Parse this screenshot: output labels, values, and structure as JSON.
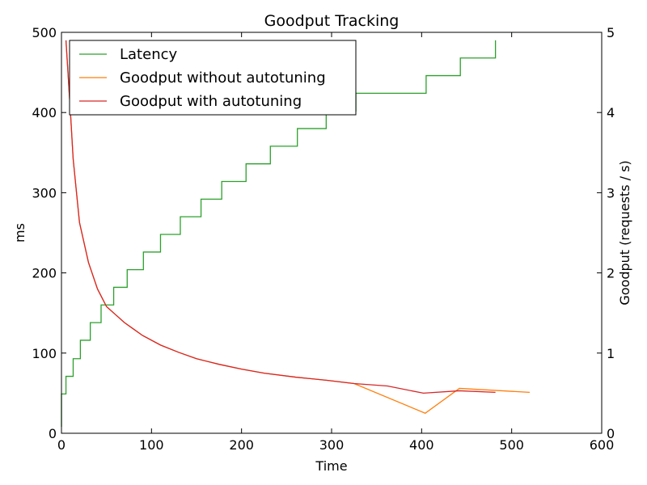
{
  "chart_data": {
    "type": "line",
    "title": "Goodput Tracking",
    "xlabel": "Time",
    "ylabel_left": "ms",
    "ylabel_right": "Goodput (requests / s)",
    "xlim": [
      0,
      600
    ],
    "ylim_left": [
      0,
      500
    ],
    "ylim_right": [
      0,
      5
    ],
    "x_ticks": [
      0,
      100,
      200,
      300,
      400,
      500,
      600
    ],
    "y_ticks_left": [
      0,
      100,
      200,
      300,
      400,
      500
    ],
    "y_ticks_right": [
      0,
      1,
      2,
      3,
      4,
      5
    ],
    "grid": false,
    "legend_position": "upper-left",
    "series": [
      {
        "name": "Latency",
        "axis": "left",
        "color": "#2ca02c",
        "step": true,
        "points": [
          [
            0,
            8
          ],
          [
            0,
            49
          ],
          [
            5,
            49
          ],
          [
            5,
            71
          ],
          [
            13,
            71
          ],
          [
            13,
            93
          ],
          [
            21,
            93
          ],
          [
            21,
            116
          ],
          [
            32,
            116
          ],
          [
            32,
            138
          ],
          [
            44,
            138
          ],
          [
            44,
            160
          ],
          [
            58,
            160
          ],
          [
            58,
            182
          ],
          [
            73,
            182
          ],
          [
            73,
            204
          ],
          [
            91,
            204
          ],
          [
            91,
            226
          ],
          [
            110,
            226
          ],
          [
            110,
            248
          ],
          [
            132,
            248
          ],
          [
            132,
            270
          ],
          [
            155,
            270
          ],
          [
            155,
            292
          ],
          [
            178,
            292
          ],
          [
            178,
            314
          ],
          [
            205,
            314
          ],
          [
            205,
            336
          ],
          [
            232,
            336
          ],
          [
            232,
            358
          ],
          [
            262,
            358
          ],
          [
            262,
            380
          ],
          [
            294,
            380
          ],
          [
            294,
            402
          ],
          [
            327,
            402
          ],
          [
            327,
            424
          ],
          [
            405,
            424
          ],
          [
            405,
            446
          ],
          [
            443,
            446
          ],
          [
            443,
            468
          ],
          [
            482,
            468
          ],
          [
            482,
            490
          ]
        ]
      },
      {
        "name": "Goodput without autotuning",
        "axis": "right",
        "color": "#ff7f0e",
        "step": false,
        "points": [
          [
            5,
            4.9
          ],
          [
            10,
            4.0
          ],
          [
            13,
            3.42
          ],
          [
            20,
            2.63
          ],
          [
            30,
            2.13
          ],
          [
            40,
            1.8
          ],
          [
            50,
            1.58
          ],
          [
            60,
            1.48
          ],
          [
            70,
            1.38
          ],
          [
            80,
            1.3
          ],
          [
            90,
            1.22
          ],
          [
            110,
            1.1
          ],
          [
            130,
            1.01
          ],
          [
            150,
            0.93
          ],
          [
            175,
            0.86
          ],
          [
            200,
            0.8
          ],
          [
            225,
            0.75
          ],
          [
            260,
            0.7
          ],
          [
            295,
            0.66
          ],
          [
            325,
            0.62
          ],
          [
            404,
            0.25
          ],
          [
            442,
            0.56
          ],
          [
            520,
            0.51
          ]
        ]
      },
      {
        "name": "Goodput with autotuning",
        "axis": "right",
        "color": "#d62728",
        "step": false,
        "points": [
          [
            5,
            4.9
          ],
          [
            10,
            4.0
          ],
          [
            13,
            3.42
          ],
          [
            20,
            2.63
          ],
          [
            30,
            2.13
          ],
          [
            40,
            1.8
          ],
          [
            50,
            1.58
          ],
          [
            60,
            1.48
          ],
          [
            70,
            1.38
          ],
          [
            80,
            1.3
          ],
          [
            90,
            1.22
          ],
          [
            110,
            1.1
          ],
          [
            130,
            1.01
          ],
          [
            150,
            0.93
          ],
          [
            175,
            0.86
          ],
          [
            200,
            0.8
          ],
          [
            225,
            0.75
          ],
          [
            260,
            0.7
          ],
          [
            295,
            0.66
          ],
          [
            325,
            0.62
          ],
          [
            362,
            0.59
          ],
          [
            402,
            0.5
          ],
          [
            442,
            0.53
          ],
          [
            482,
            0.51
          ]
        ]
      }
    ]
  }
}
